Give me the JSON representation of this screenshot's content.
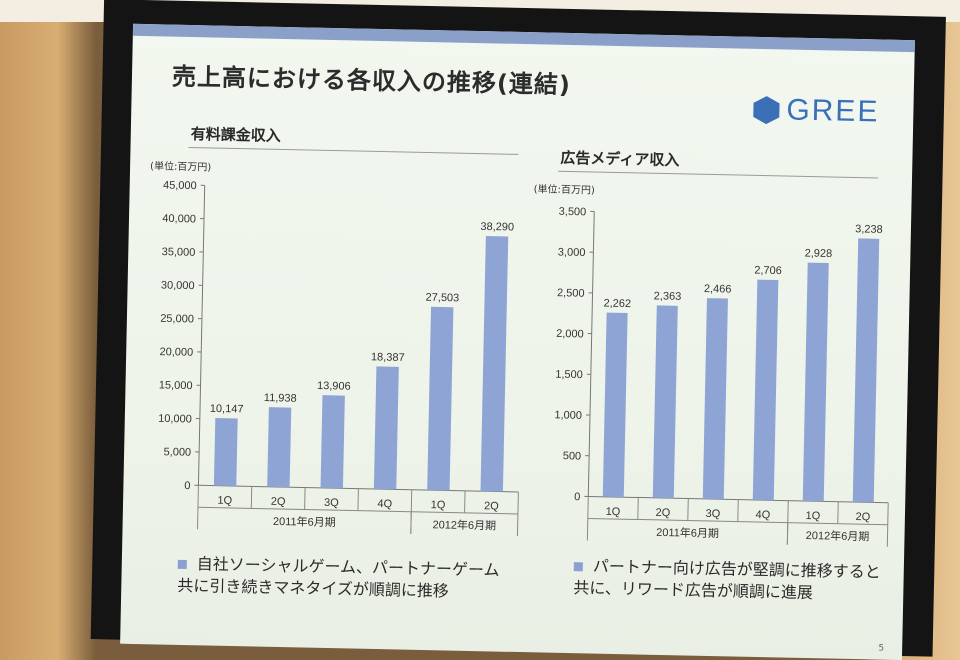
{
  "slide": {
    "title": "売上高における各収入の推移(連結)",
    "logo_text": "GREE",
    "page_number": "5"
  },
  "chart_data": [
    {
      "type": "bar",
      "title": "有料課金収入",
      "unit": "(単位:百万円)",
      "categories": [
        "1Q",
        "2Q",
        "3Q",
        "4Q",
        "1Q",
        "2Q"
      ],
      "groups": [
        {
          "label": "2011年6月期",
          "count": 4
        },
        {
          "label": "2012年6月期",
          "count": 2
        }
      ],
      "values": [
        10147,
        11938,
        13906,
        18387,
        27503,
        38290
      ],
      "value_labels": [
        "10,147",
        "11,938",
        "13,906",
        "18,387",
        "27,503",
        "38,290"
      ],
      "ylim": [
        0,
        45000
      ],
      "yticks": [
        0,
        5000,
        10000,
        15000,
        20000,
        25000,
        30000,
        35000,
        40000,
        45000
      ],
      "ytick_labels": [
        "0",
        "5,000",
        "10,000",
        "15,000",
        "20,000",
        "25,000",
        "30,000",
        "35,000",
        "40,000",
        "45,000"
      ],
      "bar_color": "#8ea4d4",
      "grid": false
    },
    {
      "type": "bar",
      "title": "広告メディア収入",
      "unit": "(単位:百万円)",
      "categories": [
        "1Q",
        "2Q",
        "3Q",
        "4Q",
        "1Q",
        "2Q"
      ],
      "groups": [
        {
          "label": "2011年6月期",
          "count": 4
        },
        {
          "label": "2012年6月期",
          "count": 2
        }
      ],
      "values": [
        2262,
        2363,
        2466,
        2706,
        2928,
        3238
      ],
      "value_labels": [
        "2,262",
        "2,363",
        "2,466",
        "2,706",
        "2,928",
        "3,238"
      ],
      "ylim": [
        0,
        3500
      ],
      "yticks": [
        0,
        500,
        1000,
        1500,
        2000,
        2500,
        3000,
        3500
      ],
      "ytick_labels": [
        "0",
        "500",
        "1,000",
        "1,500",
        "2,000",
        "2,500",
        "3,000",
        "3,500"
      ],
      "bar_color": "#8ea4d4",
      "grid": false
    }
  ],
  "bullets": [
    {
      "line1": "自社ソーシャルゲーム、パートナーゲーム",
      "line2": "共に引き続きマネタイズが順調に推移"
    },
    {
      "line1": "パートナー向け広告が堅調に推移すると",
      "line2": "共に、リワード広告が順調に進展"
    }
  ]
}
